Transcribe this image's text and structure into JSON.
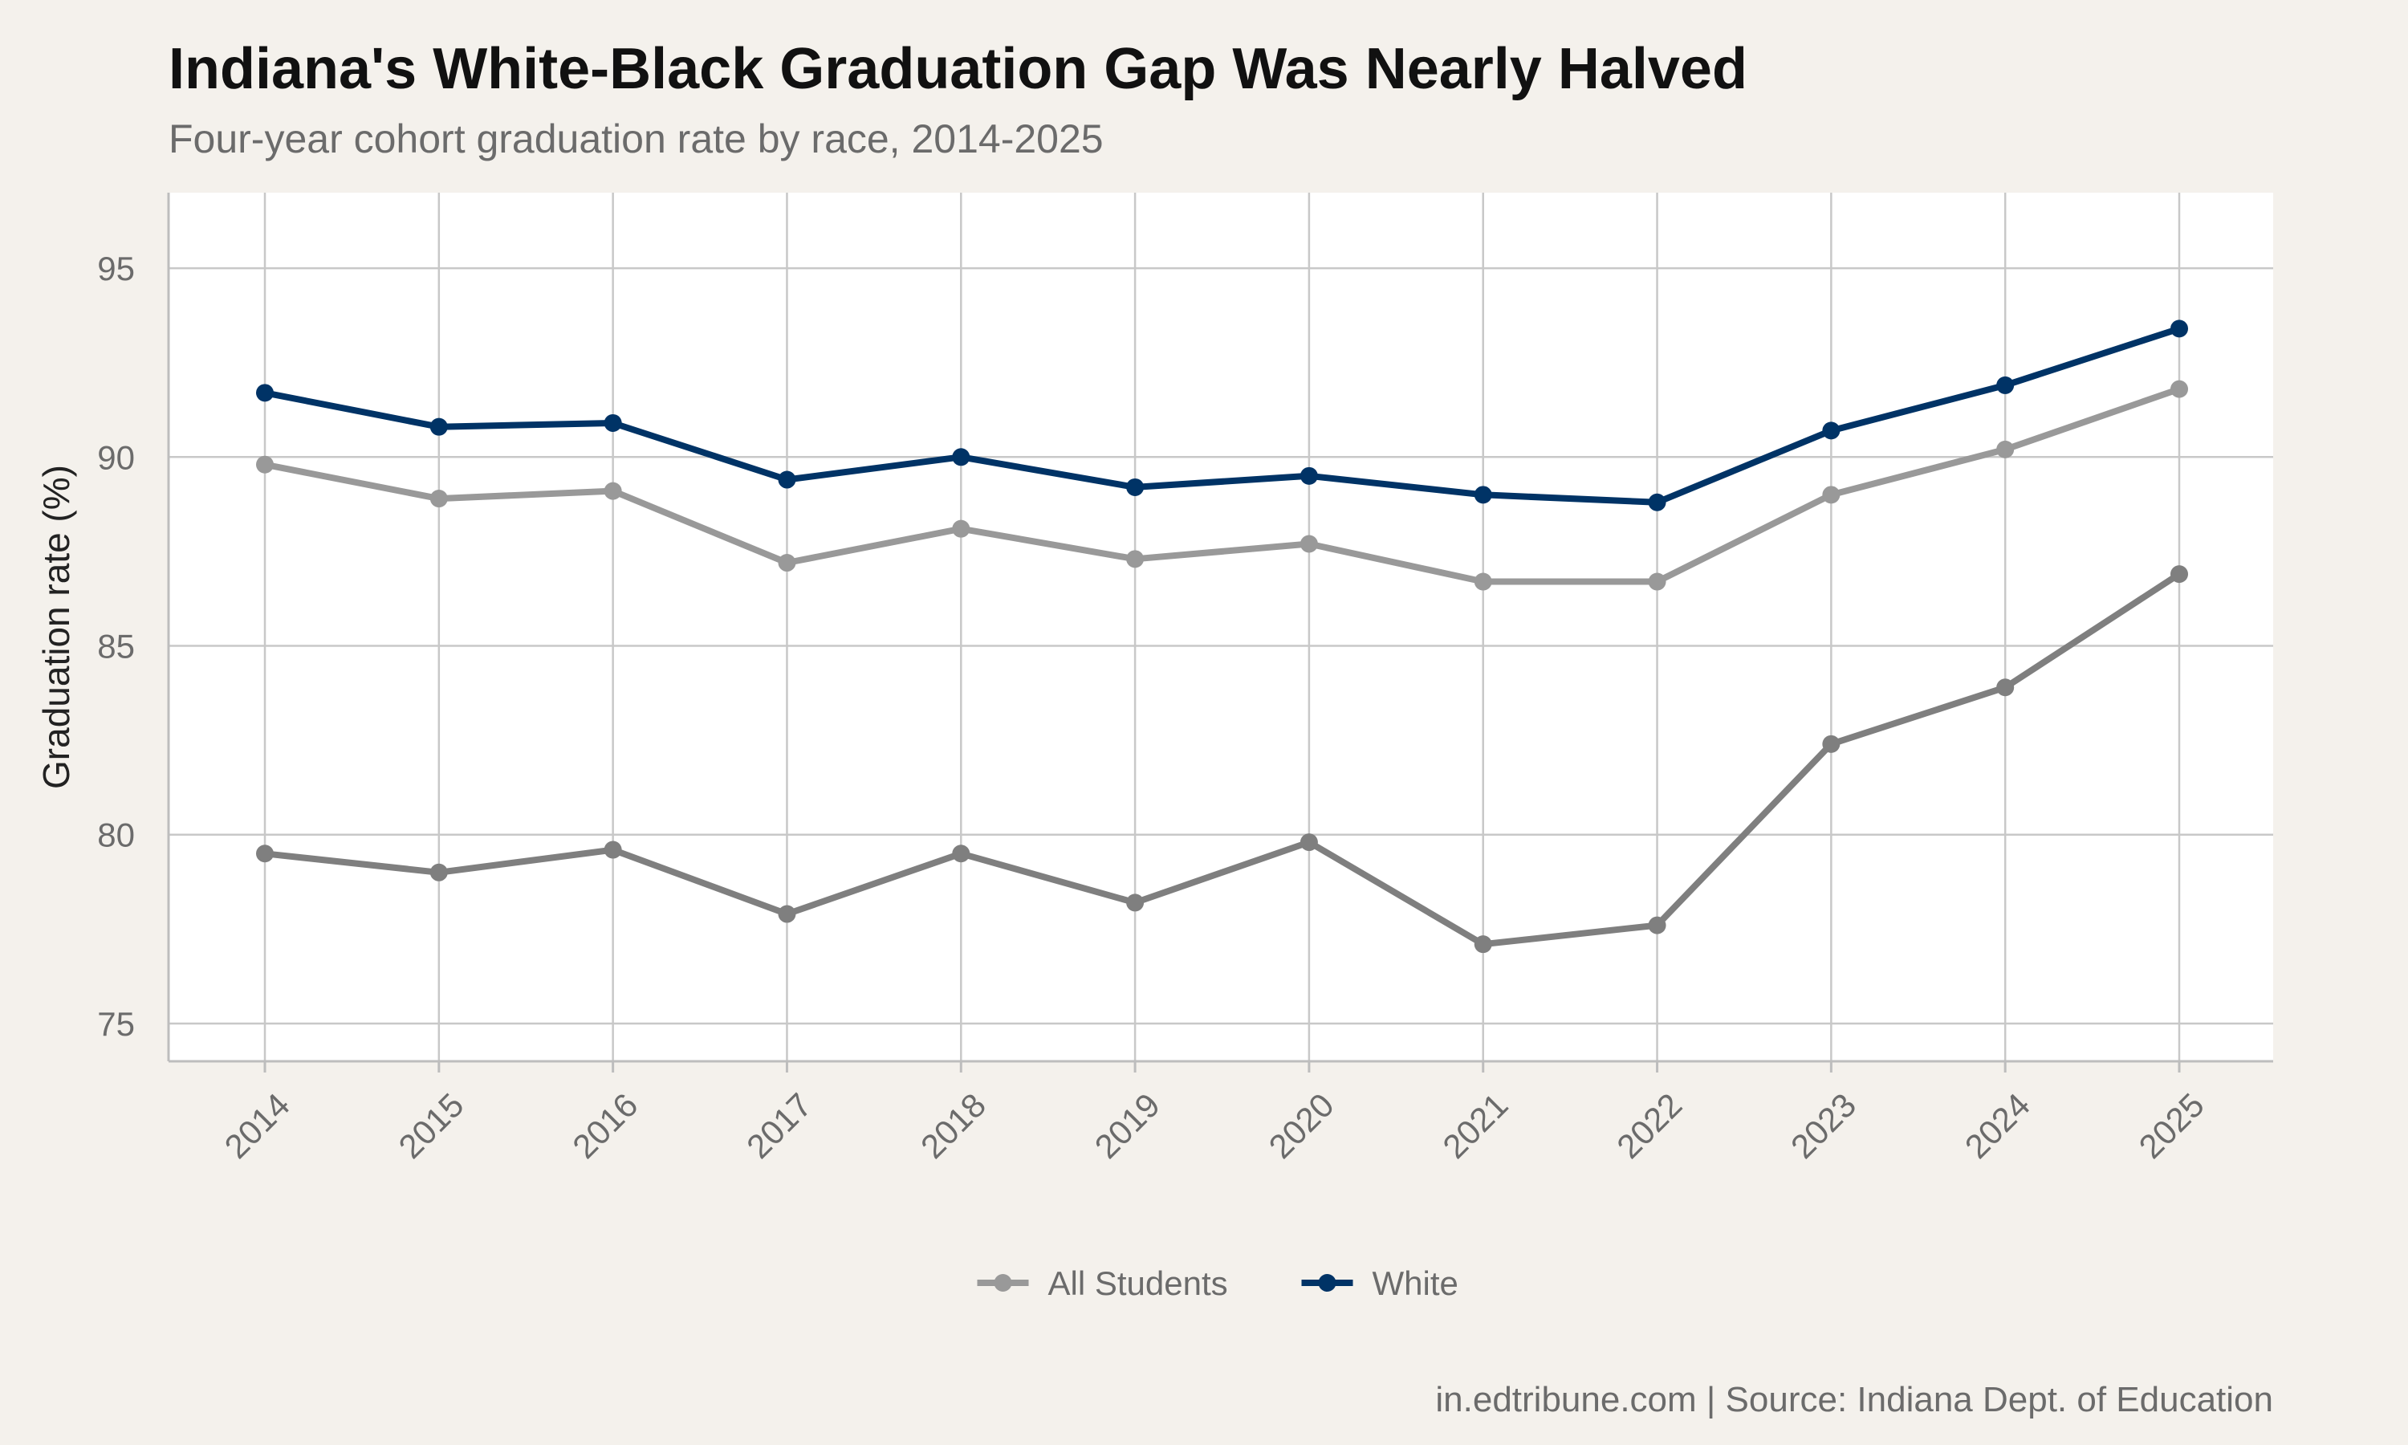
{
  "chart_data": {
    "type": "line",
    "title": "Indiana's White-Black Graduation Gap Was Nearly Halved",
    "subtitle": "Four-year cohort graduation rate by race, 2014-2025",
    "xlabel": "",
    "ylabel": "Graduation rate (%)",
    "caption": "in.edtribune.com | Source: Indiana Dept. of Education",
    "x": [
      "2014",
      "2015",
      "2016",
      "2017",
      "2018",
      "2019",
      "2020",
      "2021",
      "2022",
      "2023",
      "2024",
      "2025"
    ],
    "yticks": [
      "75",
      "80",
      "85",
      "90",
      "95"
    ],
    "ylim": [
      74,
      97
    ],
    "grid": true,
    "legend_position": "bottom",
    "series": [
      {
        "key": "all-students",
        "name": "All Students",
        "color": "#999999",
        "in_legend": true,
        "values": [
          89.8,
          88.9,
          89.1,
          87.2,
          88.1,
          87.3,
          87.7,
          86.7,
          86.7,
          89.0,
          90.2,
          91.8
        ]
      },
      {
        "key": "white",
        "name": "White",
        "color": "#003366",
        "in_legend": true,
        "values": [
          91.7,
          90.8,
          90.9,
          89.4,
          90.0,
          89.2,
          89.5,
          89.0,
          88.8,
          90.7,
          91.9,
          93.4
        ]
      },
      {
        "key": "black",
        "color": "#7F7F7F",
        "in_legend": false,
        "values": [
          79.5,
          79.0,
          79.6,
          77.9,
          79.5,
          78.2,
          79.8,
          77.1,
          77.6,
          82.4,
          83.9,
          86.9
        ]
      }
    ]
  }
}
